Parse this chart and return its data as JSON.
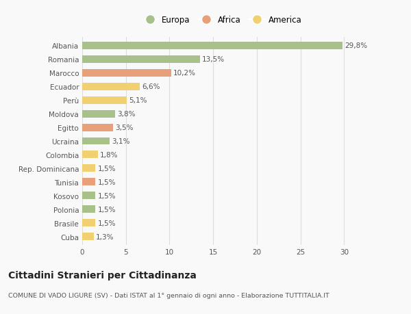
{
  "categories": [
    "Albania",
    "Romania",
    "Marocco",
    "Ecuador",
    "Perù",
    "Moldova",
    "Egitto",
    "Ucraina",
    "Colombia",
    "Rep. Dominicana",
    "Tunisia",
    "Kosovo",
    "Polonia",
    "Brasile",
    "Cuba"
  ],
  "values": [
    29.8,
    13.5,
    10.2,
    6.6,
    5.1,
    3.8,
    3.5,
    3.1,
    1.8,
    1.5,
    1.5,
    1.5,
    1.5,
    1.5,
    1.3
  ],
  "labels": [
    "29,8%",
    "13,5%",
    "10,2%",
    "6,6%",
    "5,1%",
    "3,8%",
    "3,5%",
    "3,1%",
    "1,8%",
    "1,5%",
    "1,5%",
    "1,5%",
    "1,5%",
    "1,5%",
    "1,3%"
  ],
  "colors": [
    "#a8c08a",
    "#a8c08a",
    "#e8a07a",
    "#f0d070",
    "#f0d070",
    "#a8c08a",
    "#e8a07a",
    "#a8c08a",
    "#f0d070",
    "#f0d070",
    "#e8a07a",
    "#a8c08a",
    "#a8c08a",
    "#f0d070",
    "#f0d070"
  ],
  "legend_labels": [
    "Europa",
    "Africa",
    "America"
  ],
  "legend_colors": [
    "#a8c08a",
    "#e8a07a",
    "#f0d070"
  ],
  "title": "Cittadini Stranieri per Cittadinanza",
  "subtitle": "COMUNE DI VADO LIGURE (SV) - Dati ISTAT al 1° gennaio di ogni anno - Elaborazione TUTTITALIA.IT",
  "xlim": [
    0,
    32
  ],
  "xticks": [
    0,
    5,
    10,
    15,
    20,
    25,
    30
  ],
  "background_color": "#f9f9f9",
  "grid_color": "#dddddd",
  "bar_height": 0.55,
  "label_fontsize": 7.5,
  "tick_fontsize": 7.5,
  "title_fontsize": 10,
  "subtitle_fontsize": 6.8,
  "legend_fontsize": 8.5
}
